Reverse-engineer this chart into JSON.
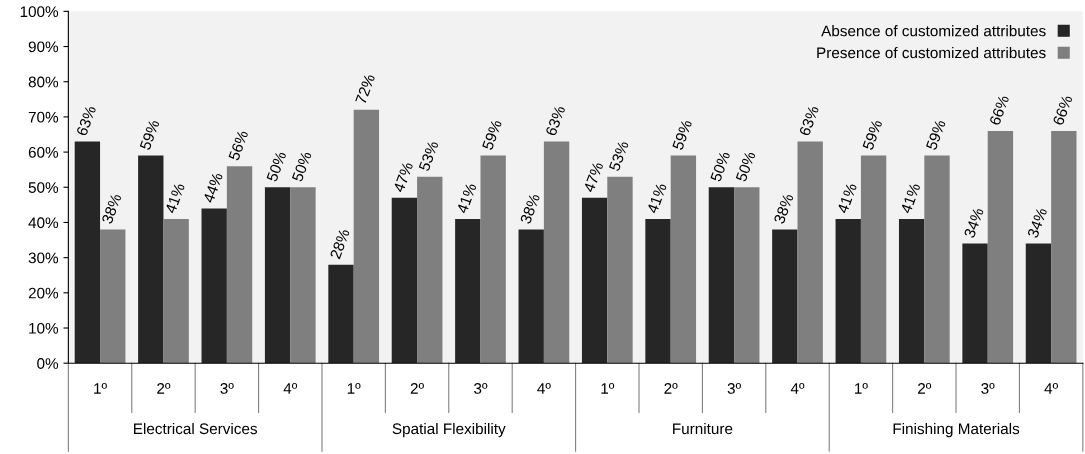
{
  "chart_data": {
    "type": "bar",
    "categories": [
      "1º",
      "2º",
      "3º",
      "4º",
      "1º",
      "2º",
      "3º",
      "4º",
      "1º",
      "2º",
      "3º",
      "4º",
      "1º",
      "2º",
      "3º",
      "4º"
    ],
    "series": [
      {
        "name": "Absence of customized attributes",
        "color": "#262626",
        "values": [
          63,
          59,
          44,
          50,
          28,
          47,
          41,
          38,
          47,
          41,
          50,
          38,
          41,
          41,
          34,
          34
        ],
        "value_labels": [
          "63%",
          "59%",
          "44%",
          "50%",
          "28%",
          "47%",
          "41%",
          "38%",
          "47%",
          "41%",
          "50%",
          "38%",
          "41%",
          "41%",
          "34%",
          "34%"
        ]
      },
      {
        "name": "Presence of customized attributes",
        "color": "#7f7f7f",
        "values": [
          38,
          41,
          56,
          50,
          72,
          53,
          59,
          63,
          53,
          59,
          50,
          63,
          59,
          59,
          66,
          66
        ],
        "value_labels": [
          "38%",
          "41%",
          "56%",
          "50%",
          "72%",
          "53%",
          "59%",
          "63%",
          "53%",
          "59%",
          "50%",
          "63%",
          "59%",
          "59%",
          "66%",
          "66%"
        ]
      }
    ],
    "ylim": [
      0,
      100
    ],
    "yticks": [
      {
        "value": 0,
        "label": "0%"
      },
      {
        "value": 10,
        "label": "10%"
      },
      {
        "value": 20,
        "label": "20%"
      },
      {
        "value": 30,
        "label": "30%"
      },
      {
        "value": 40,
        "label": "40%"
      },
      {
        "value": 50,
        "label": "50%"
      },
      {
        "value": 60,
        "label": "60%"
      },
      {
        "value": 70,
        "label": "70%"
      },
      {
        "value": 80,
        "label": "80%"
      },
      {
        "value": 90,
        "label": "90%"
      },
      {
        "value": 100,
        "label": "100%"
      }
    ],
    "annotations": [
      "Electrical Services",
      "Spatial Flexibility",
      "Furniture",
      "Finishing Materials"
    ],
    "grid": false,
    "legend": "top right"
  }
}
